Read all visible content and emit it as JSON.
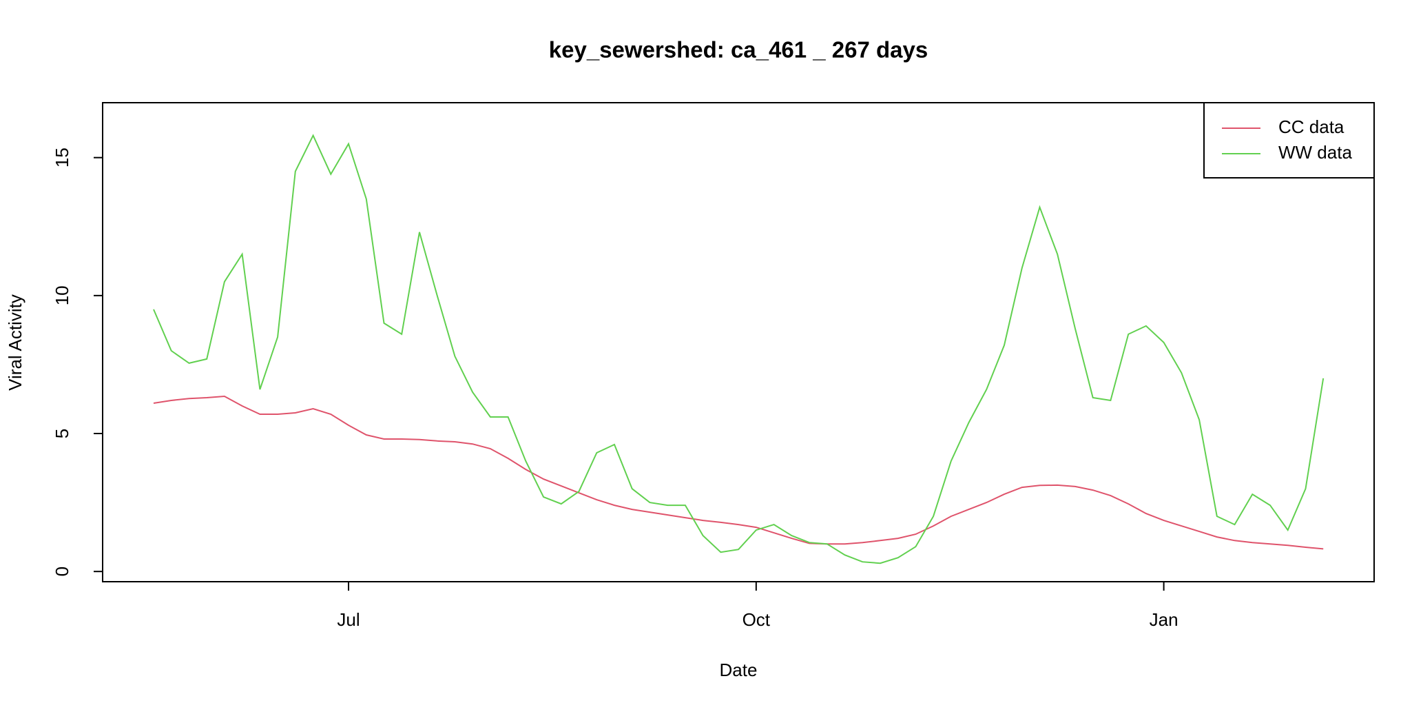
{
  "chart_data": {
    "type": "line",
    "title": "key_sewershed:  ca_461 _ 267  days",
    "x_label": "Date",
    "y_label": "Viral Activity",
    "categories": [
      null,
      null,
      null,
      null,
      null,
      null,
      null,
      null,
      null,
      null,
      null,
      "Jul",
      null,
      null,
      null,
      null,
      null,
      null,
      null,
      null,
      null,
      null,
      null,
      null,
      null,
      null,
      null,
      null,
      null,
      null,
      null,
      null,
      null,
      null,
      "Oct",
      null,
      null,
      null,
      null,
      null,
      null,
      null,
      null,
      null,
      null,
      null,
      null,
      null,
      null,
      null,
      null,
      null,
      null,
      null,
      null,
      null,
      null,
      "Jan",
      null,
      null,
      null,
      null,
      null,
      null,
      null,
      null,
      null
    ],
    "series": [
      {
        "name": "CC data",
        "color": "#DF536B",
        "values": [
          6.1,
          6.2,
          6.27,
          6.3,
          6.35,
          6.0,
          5.7,
          5.7,
          5.75,
          5.9,
          5.7,
          5.3,
          4.95,
          4.8,
          4.8,
          4.78,
          4.73,
          4.7,
          4.62,
          4.45,
          4.1,
          3.7,
          3.35,
          3.1,
          2.85,
          2.6,
          2.4,
          2.25,
          2.15,
          2.05,
          1.95,
          1.85,
          1.78,
          1.7,
          1.6,
          1.4,
          1.2,
          1.02,
          1.0,
          1.0,
          1.05,
          1.12,
          1.2,
          1.35,
          1.65,
          2.0,
          2.25,
          2.5,
          2.8,
          3.05,
          3.12,
          3.13,
          3.08,
          2.95,
          2.75,
          2.45,
          2.1,
          1.85,
          1.65,
          1.45,
          1.25,
          1.12,
          1.05,
          1.0,
          0.95,
          0.88,
          0.82
        ]
      },
      {
        "name": "WW data",
        "color": "#61D04F",
        "values": [
          9.5,
          8.0,
          7.55,
          7.7,
          10.5,
          11.5,
          6.6,
          8.5,
          14.5,
          15.8,
          14.4,
          15.5,
          13.5,
          9.0,
          8.6,
          12.3,
          10.0,
          7.8,
          6.5,
          5.6,
          5.6,
          4.0,
          2.7,
          2.45,
          2.9,
          4.3,
          4.6,
          3.0,
          2.5,
          2.4,
          2.4,
          1.3,
          0.7,
          0.8,
          1.5,
          1.7,
          1.3,
          1.05,
          1.0,
          0.6,
          0.35,
          0.3,
          0.5,
          0.9,
          2.0,
          4.0,
          5.4,
          6.6,
          8.2,
          11.0,
          13.2,
          11.5,
          8.8,
          6.3,
          6.2,
          8.6,
          8.9,
          8.3,
          7.2,
          5.5,
          2.0,
          1.7,
          2.8,
          2.4,
          1.5,
          3.0,
          7.0
        ]
      }
    ],
    "ylim": [
      -0.37,
      16.99
    ],
    "yticks": [
      0,
      5,
      10,
      15
    ],
    "grid": false,
    "legend": "top-right"
  }
}
